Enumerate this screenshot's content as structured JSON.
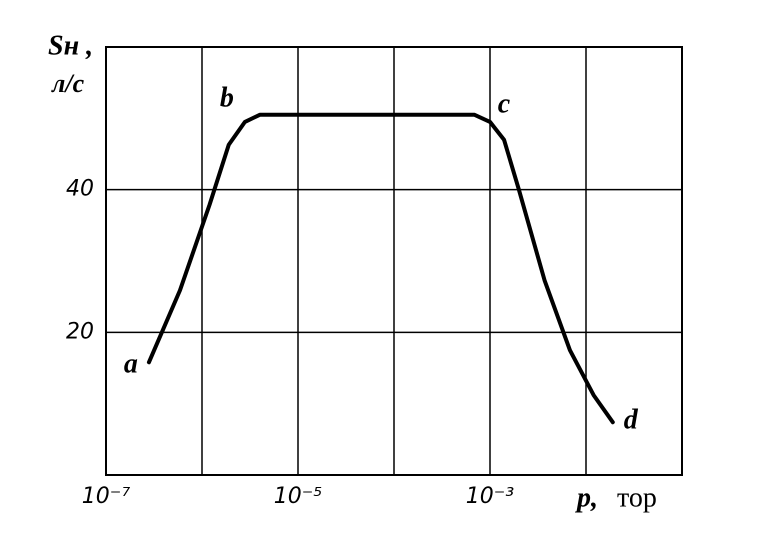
{
  "chart_data": {
    "type": "line",
    "y_label": "Sн ,",
    "y_unit": "л/с",
    "x_label": "p,",
    "x_unit": "тор",
    "log_x": true,
    "grid": true,
    "color": "#000000",
    "xlim": [
      1e-07,
      0.1
    ],
    "xticks": [
      {
        "value": 1e-07,
        "label": "10⁻⁷"
      },
      {
        "value": 1e-05,
        "label": "10⁻⁵"
      },
      {
        "value": 0.001,
        "label": "10⁻³"
      }
    ],
    "x_minor_gridlines": [
      1e-06,
      0.0001,
      0.01
    ],
    "ylim": [
      0,
      60
    ],
    "yticks": [
      20,
      40
    ],
    "x": [
      2.8e-07,
      5.9e-07,
      1.2e-06,
      1.9e-06,
      2.8e-06,
      4e-06,
      1e-05,
      0.00011,
      0.00069,
      0.001,
      0.0014,
      0.002,
      0.0037,
      0.0068,
      0.012,
      0.019
    ],
    "values": [
      15.8,
      25.9,
      37.9,
      46.3,
      49.5,
      50.5,
      50.5,
      50.5,
      50.5,
      49.5,
      47,
      40,
      27.3,
      17.5,
      11.2,
      7.4
    ],
    "annotations": [
      {
        "text": "a",
        "x": 2.8e-07,
        "y": 15.8
      },
      {
        "text": "b",
        "x": 2.8e-06,
        "y": 49.5
      },
      {
        "text": "c",
        "x": 0.001,
        "y": 49.5
      },
      {
        "text": "d",
        "x": 0.019,
        "y": 7.4
      }
    ]
  }
}
